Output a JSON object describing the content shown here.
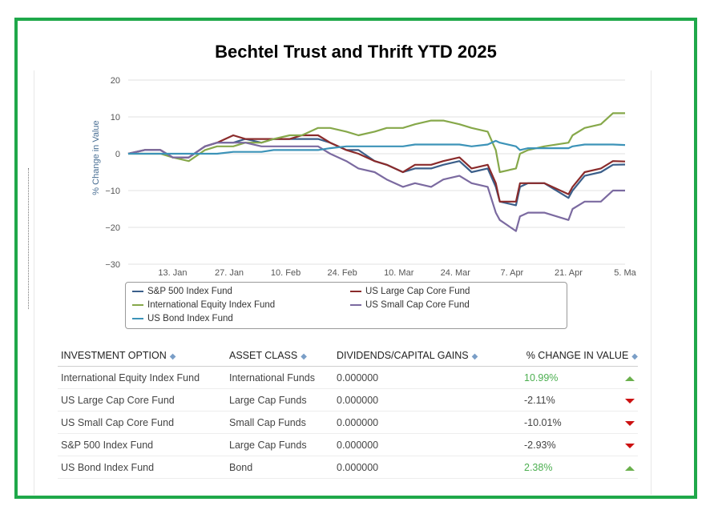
{
  "title": "Bechtel Trust and Thrift YTD 2025",
  "chart_data": {
    "type": "line",
    "ylabel": "% Change in Value",
    "ylim": [
      -30,
      20
    ],
    "yticks": [
      20,
      10,
      0,
      -10,
      -20,
      -30
    ],
    "ytick_labels": [
      "20",
      "10",
      "0",
      "−10",
      "−20",
      "−30"
    ],
    "xlim": [
      "2025-01-02",
      "2025-05-05"
    ],
    "xticks": [
      "2025-01-13",
      "2025-01-27",
      "2025-02-10",
      "2025-02-24",
      "2025-03-10",
      "2025-03-24",
      "2025-04-07",
      "2025-04-21",
      "2025-05-05"
    ],
    "xtick_labels": [
      "13. Jan",
      "27. Jan",
      "10. Feb",
      "24. Feb",
      "10. Mar",
      "24. Mar",
      "7. Apr",
      "21. Apr",
      "5. Ma"
    ],
    "grid": true,
    "legend_position": "bottom",
    "series": [
      {
        "name": "S&P 500 Index Fund",
        "color": "#3b5f8a",
        "x": [
          "2025-01-02",
          "2025-01-06",
          "2025-01-10",
          "2025-01-13",
          "2025-01-17",
          "2025-01-21",
          "2025-01-24",
          "2025-01-28",
          "2025-01-31",
          "2025-02-04",
          "2025-02-07",
          "2025-02-11",
          "2025-02-14",
          "2025-02-18",
          "2025-02-21",
          "2025-02-25",
          "2025-02-28",
          "2025-03-04",
          "2025-03-07",
          "2025-03-11",
          "2025-03-14",
          "2025-03-18",
          "2025-03-21",
          "2025-03-25",
          "2025-03-28",
          "2025-04-01",
          "2025-04-03",
          "2025-04-04",
          "2025-04-08",
          "2025-04-09",
          "2025-04-11",
          "2025-04-15",
          "2025-04-21",
          "2025-04-22",
          "2025-04-25",
          "2025-04-29",
          "2025-05-02",
          "2025-05-05"
        ],
        "y": [
          0,
          1,
          1,
          -1,
          -1,
          2,
          3,
          3,
          4,
          3,
          4,
          4,
          4,
          4,
          3,
          1,
          1,
          -2,
          -3,
          -5,
          -4,
          -4,
          -3,
          -2,
          -5,
          -4,
          -9,
          -13,
          -14,
          -9,
          -8,
          -8,
          -12,
          -10,
          -6,
          -5,
          -3,
          -2.93
        ]
      },
      {
        "name": "US Large Cap Core Fund",
        "color": "#8a2b2b",
        "x": [
          "2025-01-02",
          "2025-01-06",
          "2025-01-10",
          "2025-01-13",
          "2025-01-17",
          "2025-01-21",
          "2025-01-24",
          "2025-01-28",
          "2025-01-31",
          "2025-02-04",
          "2025-02-07",
          "2025-02-11",
          "2025-02-14",
          "2025-02-18",
          "2025-02-21",
          "2025-02-25",
          "2025-02-28",
          "2025-03-04",
          "2025-03-07",
          "2025-03-11",
          "2025-03-14",
          "2025-03-18",
          "2025-03-21",
          "2025-03-25",
          "2025-03-28",
          "2025-04-01",
          "2025-04-03",
          "2025-04-04",
          "2025-04-08",
          "2025-04-09",
          "2025-04-11",
          "2025-04-15",
          "2025-04-21",
          "2025-04-22",
          "2025-04-25",
          "2025-04-29",
          "2025-05-02",
          "2025-05-05"
        ],
        "y": [
          0,
          1,
          1,
          -1,
          -1,
          2,
          3,
          5,
          4,
          4,
          4,
          4,
          5,
          5,
          3,
          1,
          0,
          -2,
          -3,
          -5,
          -3,
          -3,
          -2,
          -1,
          -4,
          -3,
          -8,
          -13,
          -13,
          -8,
          -8,
          -8,
          -11,
          -9,
          -5,
          -4,
          -2,
          -2.11
        ]
      },
      {
        "name": "International Equity Index Fund",
        "color": "#86a84a",
        "x": [
          "2025-01-02",
          "2025-01-06",
          "2025-01-10",
          "2025-01-13",
          "2025-01-17",
          "2025-01-21",
          "2025-01-24",
          "2025-01-28",
          "2025-01-31",
          "2025-02-04",
          "2025-02-07",
          "2025-02-11",
          "2025-02-14",
          "2025-02-18",
          "2025-02-21",
          "2025-02-25",
          "2025-02-28",
          "2025-03-04",
          "2025-03-07",
          "2025-03-11",
          "2025-03-14",
          "2025-03-18",
          "2025-03-21",
          "2025-03-25",
          "2025-03-28",
          "2025-04-01",
          "2025-04-03",
          "2025-04-04",
          "2025-04-08",
          "2025-04-09",
          "2025-04-11",
          "2025-04-15",
          "2025-04-21",
          "2025-04-22",
          "2025-04-25",
          "2025-04-29",
          "2025-05-02",
          "2025-05-05"
        ],
        "y": [
          0,
          0,
          0,
          -1,
          -2,
          1,
          2,
          2,
          3,
          3,
          4,
          5,
          5,
          7,
          7,
          6,
          5,
          6,
          7,
          7,
          8,
          9,
          9,
          8,
          7,
          6,
          1,
          -5,
          -4,
          0,
          1,
          2,
          3,
          5,
          7,
          8,
          11,
          10.99
        ]
      },
      {
        "name": "US Small Cap Core Fund",
        "color": "#7b6aa0",
        "x": [
          "2025-01-02",
          "2025-01-06",
          "2025-01-10",
          "2025-01-13",
          "2025-01-17",
          "2025-01-21",
          "2025-01-24",
          "2025-01-28",
          "2025-01-31",
          "2025-02-04",
          "2025-02-07",
          "2025-02-11",
          "2025-02-14",
          "2025-02-18",
          "2025-02-21",
          "2025-02-25",
          "2025-02-28",
          "2025-03-04",
          "2025-03-07",
          "2025-03-11",
          "2025-03-14",
          "2025-03-18",
          "2025-03-21",
          "2025-03-25",
          "2025-03-28",
          "2025-04-01",
          "2025-04-03",
          "2025-04-04",
          "2025-04-08",
          "2025-04-09",
          "2025-04-11",
          "2025-04-15",
          "2025-04-21",
          "2025-04-22",
          "2025-04-25",
          "2025-04-29",
          "2025-05-02",
          "2025-05-05"
        ],
        "y": [
          0,
          1,
          1,
          -1,
          -1,
          2,
          3,
          3,
          3,
          2,
          2,
          2,
          2,
          2,
          0,
          -2,
          -4,
          -5,
          -7,
          -9,
          -8,
          -9,
          -7,
          -6,
          -8,
          -9,
          -16,
          -18,
          -21,
          -17,
          -16,
          -16,
          -18,
          -15,
          -13,
          -13,
          -10,
          -10.01
        ]
      },
      {
        "name": "US Bond Index Fund",
        "color": "#3c93b8",
        "x": [
          "2025-01-02",
          "2025-01-06",
          "2025-01-10",
          "2025-01-13",
          "2025-01-17",
          "2025-01-21",
          "2025-01-24",
          "2025-01-28",
          "2025-01-31",
          "2025-02-04",
          "2025-02-07",
          "2025-02-11",
          "2025-02-14",
          "2025-02-18",
          "2025-02-21",
          "2025-02-25",
          "2025-02-28",
          "2025-03-04",
          "2025-03-07",
          "2025-03-11",
          "2025-03-14",
          "2025-03-18",
          "2025-03-21",
          "2025-03-25",
          "2025-03-28",
          "2025-04-01",
          "2025-04-03",
          "2025-04-04",
          "2025-04-08",
          "2025-04-09",
          "2025-04-11",
          "2025-04-15",
          "2025-04-21",
          "2025-04-22",
          "2025-04-25",
          "2025-04-29",
          "2025-05-02",
          "2025-05-05"
        ],
        "y": [
          0,
          0,
          0,
          0,
          0,
          0,
          0,
          0.5,
          0.5,
          0.5,
          1,
          1,
          1,
          1,
          1.5,
          2,
          2,
          2,
          2,
          2,
          2.5,
          2.5,
          2.5,
          2.5,
          2,
          2.5,
          3.5,
          3,
          2,
          1,
          1.5,
          1.5,
          1.5,
          2,
          2.5,
          2.5,
          2.5,
          2.38
        ]
      }
    ]
  },
  "legend": [
    {
      "name": "S&P 500 Index Fund",
      "color": "#3b5f8a"
    },
    {
      "name": "US Large Cap Core Fund",
      "color": "#8a2b2b"
    },
    {
      "name": "International Equity Index Fund",
      "color": "#86a84a"
    },
    {
      "name": "US Small Cap Core Fund",
      "color": "#7b6aa0"
    },
    {
      "name": "US Bond Index Fund",
      "color": "#3c93b8"
    }
  ],
  "table": {
    "headers": [
      "INVESTMENT OPTION",
      "ASSET CLASS",
      "DIVIDENDS/CAPITAL GAINS",
      "% CHANGE IN VALUE"
    ],
    "sort_icon": "sort-icon",
    "rows": [
      {
        "option": "International Equity Index Fund",
        "asset_class": "International Funds",
        "dividends": "0.000000",
        "change": "10.99%",
        "direction": "up"
      },
      {
        "option": "US Large Cap Core Fund",
        "asset_class": "Large Cap Funds",
        "dividends": "0.000000",
        "change": "-2.11%",
        "direction": "down"
      },
      {
        "option": "US Small Cap Core Fund",
        "asset_class": "Small Cap Funds",
        "dividends": "0.000000",
        "change": "-10.01%",
        "direction": "down"
      },
      {
        "option": "S&P 500 Index Fund",
        "asset_class": "Large Cap Funds",
        "dividends": "0.000000",
        "change": "-2.93%",
        "direction": "down"
      },
      {
        "option": "US Bond Index Fund",
        "asset_class": "Bond",
        "dividends": "0.000000",
        "change": "2.38%",
        "direction": "up"
      }
    ]
  },
  "colors": {
    "frame": "#1fa84a",
    "positive": "#4caf50",
    "up_arrow": "#6ab04c",
    "down_arrow": "#cc1111"
  }
}
